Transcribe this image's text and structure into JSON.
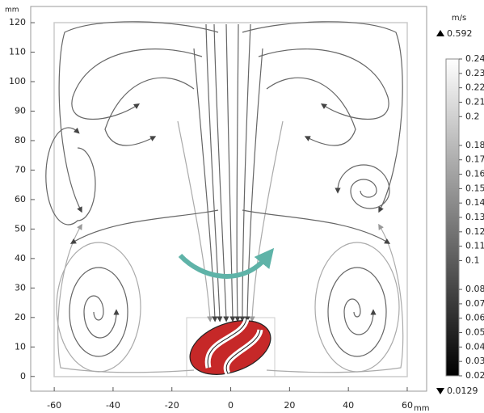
{
  "chart_data": {
    "type": "streamline",
    "x_unit": "mm",
    "y_unit": "mm",
    "xlim": [
      -68,
      66.6
    ],
    "ylim": [
      -5,
      125.5
    ],
    "xticks": [
      -60,
      -40,
      -20,
      0,
      20,
      40,
      60
    ],
    "yticks": [
      0,
      10,
      20,
      30,
      40,
      50,
      60,
      70,
      80,
      90,
      100,
      110,
      120
    ],
    "colorbar": {
      "unit": "m/s",
      "max": 0.592,
      "min": 0.0129,
      "clim": [
        0.02,
        0.24
      ],
      "ticks": [
        0.24,
        0.23,
        0.22,
        0.21,
        0.2,
        0.18,
        0.17,
        0.16,
        0.15,
        0.14,
        0.13,
        0.12,
        0.11,
        0.1,
        0.08,
        0.07,
        0.06,
        0.05,
        0.04,
        0.03,
        0.02
      ]
    }
  }
}
